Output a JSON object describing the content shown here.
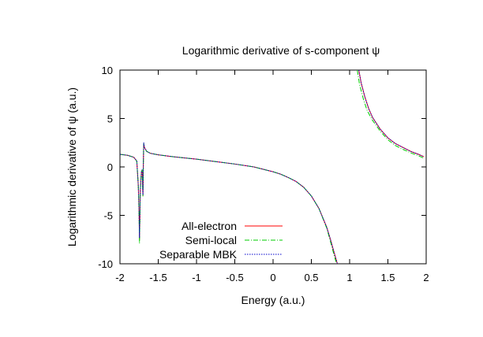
{
  "chart_data": {
    "type": "line",
    "title": "Logarithmic derivative of s-component ψ",
    "xlabel": "Energy (a.u.)",
    "ylabel": "Logarithmic derivative of ψ (a.u.)",
    "xlim": [
      -2,
      2
    ],
    "ylim": [
      -10,
      10
    ],
    "x_ticks": [
      -2,
      -1.5,
      -1,
      -0.5,
      0,
      0.5,
      1,
      1.5,
      2
    ],
    "x_tick_labels": [
      "-2",
      "-1.5",
      "-1",
      "-0.5",
      "0",
      "0.5",
      "1",
      "1.5",
      "2"
    ],
    "y_ticks": [
      -10,
      -5,
      0,
      5,
      10
    ],
    "y_tick_labels": [
      "-10",
      "-5",
      "0",
      "5",
      "10"
    ],
    "grid": false,
    "legend_position": "bottom-left",
    "series": [
      {
        "name": "All-electron",
        "color": "#ff0000",
        "style": "solid",
        "segments": [
          [
            [
              -2.0,
              1.3
            ],
            [
              -1.9,
              1.2
            ],
            [
              -1.82,
              1.0
            ],
            [
              -1.78,
              0.6
            ],
            [
              -1.76,
              -2.0
            ],
            [
              -1.75,
              -5.0
            ],
            [
              -1.745,
              -7.5
            ],
            [
              -1.74,
              -5.5
            ],
            [
              -1.735,
              -2.5
            ],
            [
              -1.72,
              -0.5
            ],
            [
              -1.71,
              -0.3
            ],
            [
              -1.7,
              -3.0
            ],
            [
              -1.695,
              0.0
            ],
            [
              -1.69,
              2.4
            ],
            [
              -1.68,
              2.0
            ],
            [
              -1.65,
              1.6
            ],
            [
              -1.6,
              1.4
            ],
            [
              -1.5,
              1.25
            ],
            [
              -1.3,
              1.05
            ],
            [
              -1.0,
              0.8
            ],
            [
              -0.75,
              0.55
            ],
            [
              -0.5,
              0.3
            ],
            [
              -0.25,
              0.0
            ],
            [
              0.0,
              -0.5
            ],
            [
              0.1,
              -0.75
            ],
            [
              0.2,
              -1.1
            ],
            [
              0.3,
              -1.5
            ],
            [
              0.4,
              -2.1
            ],
            [
              0.5,
              -3.0
            ],
            [
              0.6,
              -4.3
            ],
            [
              0.7,
              -6.2
            ],
            [
              0.75,
              -7.5
            ],
            [
              0.8,
              -8.9
            ],
            [
              0.84,
              -10.0
            ]
          ],
          [
            [
              1.12,
              10.0
            ],
            [
              1.15,
              8.7
            ],
            [
              1.2,
              7.2
            ],
            [
              1.25,
              6.0
            ],
            [
              1.3,
              5.1
            ],
            [
              1.4,
              3.9
            ],
            [
              1.5,
              3.0
            ],
            [
              1.6,
              2.4
            ],
            [
              1.7,
              2.0
            ],
            [
              1.8,
              1.6
            ],
            [
              1.9,
              1.3
            ],
            [
              1.97,
              1.05
            ]
          ]
        ]
      },
      {
        "name": "Semi-local",
        "color": "#00cc00",
        "style": "dash-dot",
        "segments": [
          [
            [
              -2.0,
              1.3
            ],
            [
              -1.9,
              1.2
            ],
            [
              -1.82,
              1.0
            ],
            [
              -1.78,
              0.6
            ],
            [
              -1.76,
              -2.0
            ],
            [
              -1.75,
              -5.2
            ],
            [
              -1.745,
              -7.9
            ],
            [
              -1.74,
              -5.7
            ],
            [
              -1.735,
              -2.6
            ],
            [
              -1.72,
              -0.5
            ],
            [
              -1.71,
              -0.3
            ],
            [
              -1.7,
              -3.0
            ],
            [
              -1.695,
              0.0
            ],
            [
              -1.69,
              2.4
            ],
            [
              -1.68,
              2.0
            ],
            [
              -1.65,
              1.6
            ],
            [
              -1.6,
              1.4
            ],
            [
              -1.5,
              1.25
            ],
            [
              -1.3,
              1.05
            ],
            [
              -1.0,
              0.8
            ],
            [
              -0.75,
              0.55
            ],
            [
              -0.5,
              0.3
            ],
            [
              -0.25,
              0.0
            ],
            [
              0.0,
              -0.5
            ],
            [
              0.1,
              -0.75
            ],
            [
              0.2,
              -1.1
            ],
            [
              0.3,
              -1.5
            ],
            [
              0.4,
              -2.1
            ],
            [
              0.5,
              -3.0
            ],
            [
              0.6,
              -4.3
            ],
            [
              0.7,
              -6.3
            ],
            [
              0.75,
              -7.7
            ],
            [
              0.8,
              -9.2
            ],
            [
              0.83,
              -10.0
            ]
          ],
          [
            [
              1.1,
              10.0
            ],
            [
              1.13,
              8.5
            ],
            [
              1.18,
              7.0
            ],
            [
              1.23,
              5.8
            ],
            [
              1.3,
              4.8
            ],
            [
              1.4,
              3.7
            ],
            [
              1.5,
              2.8
            ],
            [
              1.6,
              2.2
            ],
            [
              1.7,
              1.8
            ],
            [
              1.8,
              1.45
            ],
            [
              1.9,
              1.15
            ],
            [
              1.97,
              0.9
            ]
          ]
        ]
      },
      {
        "name": "Separable MBK",
        "color": "#0000cc",
        "style": "dotted",
        "segments": [
          [
            [
              -2.0,
              1.3
            ],
            [
              -1.9,
              1.2
            ],
            [
              -1.82,
              1.0
            ],
            [
              -1.78,
              0.6
            ],
            [
              -1.76,
              -2.0
            ],
            [
              -1.75,
              -5.0
            ],
            [
              -1.745,
              -7.3
            ],
            [
              -1.74,
              -5.4
            ],
            [
              -1.735,
              -2.5
            ],
            [
              -1.72,
              -0.5
            ],
            [
              -1.71,
              -0.3
            ],
            [
              -1.7,
              -2.9
            ],
            [
              -1.695,
              0.0
            ],
            [
              -1.69,
              2.5
            ],
            [
              -1.68,
              2.0
            ],
            [
              -1.65,
              1.6
            ],
            [
              -1.6,
              1.4
            ],
            [
              -1.5,
              1.25
            ],
            [
              -1.3,
              1.05
            ],
            [
              -1.0,
              0.8
            ],
            [
              -0.75,
              0.55
            ],
            [
              -0.5,
              0.3
            ],
            [
              -0.25,
              0.0
            ],
            [
              0.0,
              -0.5
            ],
            [
              0.1,
              -0.75
            ],
            [
              0.2,
              -1.1
            ],
            [
              0.3,
              -1.5
            ],
            [
              0.4,
              -2.1
            ],
            [
              0.5,
              -3.0
            ],
            [
              0.6,
              -4.3
            ],
            [
              0.7,
              -6.2
            ],
            [
              0.75,
              -7.5
            ],
            [
              0.8,
              -8.9
            ],
            [
              0.84,
              -10.0
            ]
          ],
          [
            [
              1.12,
              10.0
            ],
            [
              1.15,
              8.7
            ],
            [
              1.2,
              7.2
            ],
            [
              1.25,
              6.0
            ],
            [
              1.3,
              5.1
            ],
            [
              1.4,
              3.9
            ],
            [
              1.5,
              3.0
            ],
            [
              1.6,
              2.4
            ],
            [
              1.7,
              2.0
            ],
            [
              1.8,
              1.6
            ],
            [
              1.9,
              1.3
            ],
            [
              1.97,
              1.05
            ]
          ]
        ]
      }
    ]
  }
}
